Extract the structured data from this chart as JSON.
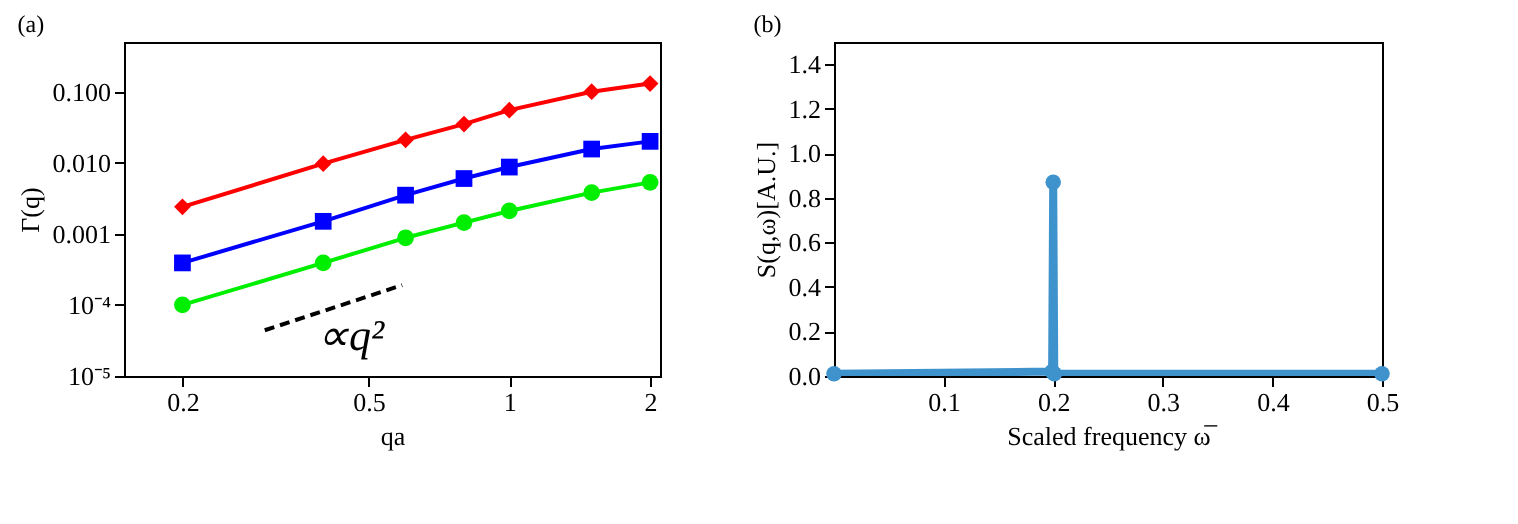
{
  "chart_data": [
    {
      "type": "line",
      "title": "(a)",
      "xlabel": "qa",
      "ylabel": "Γ(q)",
      "log": "xy",
      "grid": false,
      "x": [
        0.2,
        0.4,
        0.6,
        0.8,
        1.0,
        1.5,
        2.0
      ],
      "series": [
        {
          "color": "#ff0000",
          "marker": "diamond",
          "values": [
            0.0024,
            0.0097,
            0.021,
            0.035,
            0.055,
            0.1,
            0.13
          ]
        },
        {
          "color": "#0000ff",
          "marker": "square",
          "values": [
            0.00039,
            0.0015,
            0.0035,
            0.006,
            0.0087,
            0.0156,
            0.02
          ]
        },
        {
          "color": "#00ee00",
          "marker": "circle",
          "values": [
            0.0001,
            0.00039,
            0.00088,
            0.00144,
            0.0021,
            0.0038,
            0.0053
          ]
        },
        {
          "color": "#000000",
          "marker": "none",
          "line_style": "dashed",
          "x": [
            0.3,
            0.59
          ],
          "values": [
            4.4e-05,
            0.00019
          ]
        }
      ],
      "xlim": [
        0.15,
        2.1
      ],
      "xticks": [
        0.2,
        0.5,
        1,
        2
      ],
      "ylim": [
        1e-05,
        0.5
      ],
      "yticks": [
        {
          "value": 1e-05,
          "label": "10⁻⁵"
        },
        {
          "value": 0.0001,
          "label": "10⁻⁴"
        },
        0.001,
        {
          "value": 0.01,
          "label": "0.010"
        },
        {
          "value": 0.1,
          "label": "0.100"
        }
      ],
      "annotations": [
        "∝q²"
      ]
    },
    {
      "type": "line",
      "title": "(b)",
      "xlabel": "Scaled frequency ω̅",
      "ylabel": "S(q,ω)[A.U.]",
      "grid": false,
      "marker": "circle",
      "x": [
        0.0,
        0.199,
        0.2,
        0.201,
        0.5
      ],
      "series": [
        {
          "color": "#3f93cc",
          "values": [
            0.01,
            0.02,
            0.87,
            0.01,
            0.01
          ]
        }
      ],
      "xlim": [
        0.0,
        0.5
      ],
      "xticks": [
        0.1,
        0.2,
        0.3,
        0.4,
        0.5
      ],
      "ylim": [
        0.0,
        1.5
      ],
      "yticks": [
        {
          "value": 0.0,
          "label": "0.0"
        },
        0.2,
        0.4,
        0.6,
        0.8,
        {
          "value": 1.0,
          "label": "1.0"
        },
        1.2,
        1.4
      ]
    }
  ]
}
